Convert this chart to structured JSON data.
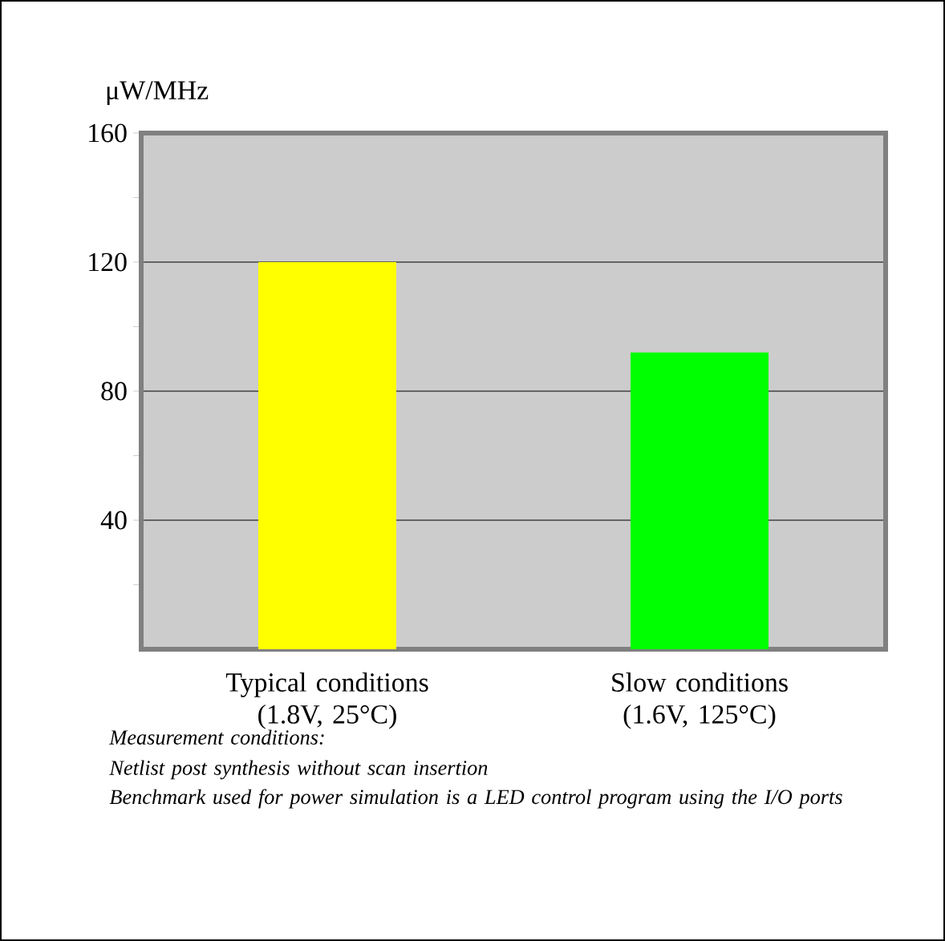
{
  "chart_data": {
    "type": "bar",
    "ylabel": "μW/MHz",
    "categories": [
      "Typical conditions (1.8V, 25°C)",
      "Slow conditions (1.6V, 125°C)"
    ],
    "values": [
      120,
      92
    ],
    "colors": [
      "#ffff00",
      "#00ff00"
    ],
    "ylim": [
      0,
      160
    ],
    "yticks": [
      {
        "value": 20,
        "label": null
      },
      40,
      {
        "value": 60,
        "label": null
      },
      80,
      {
        "value": 100,
        "label": null
      },
      120,
      {
        "value": 140,
        "label": null
      },
      160
    ],
    "grid": "y",
    "annotations": [
      "Measurement conditions:",
      "Netlist post synthesis without scan insertion",
      "Benchmark used for power simulation is a LED control program using the I/O ports"
    ]
  }
}
